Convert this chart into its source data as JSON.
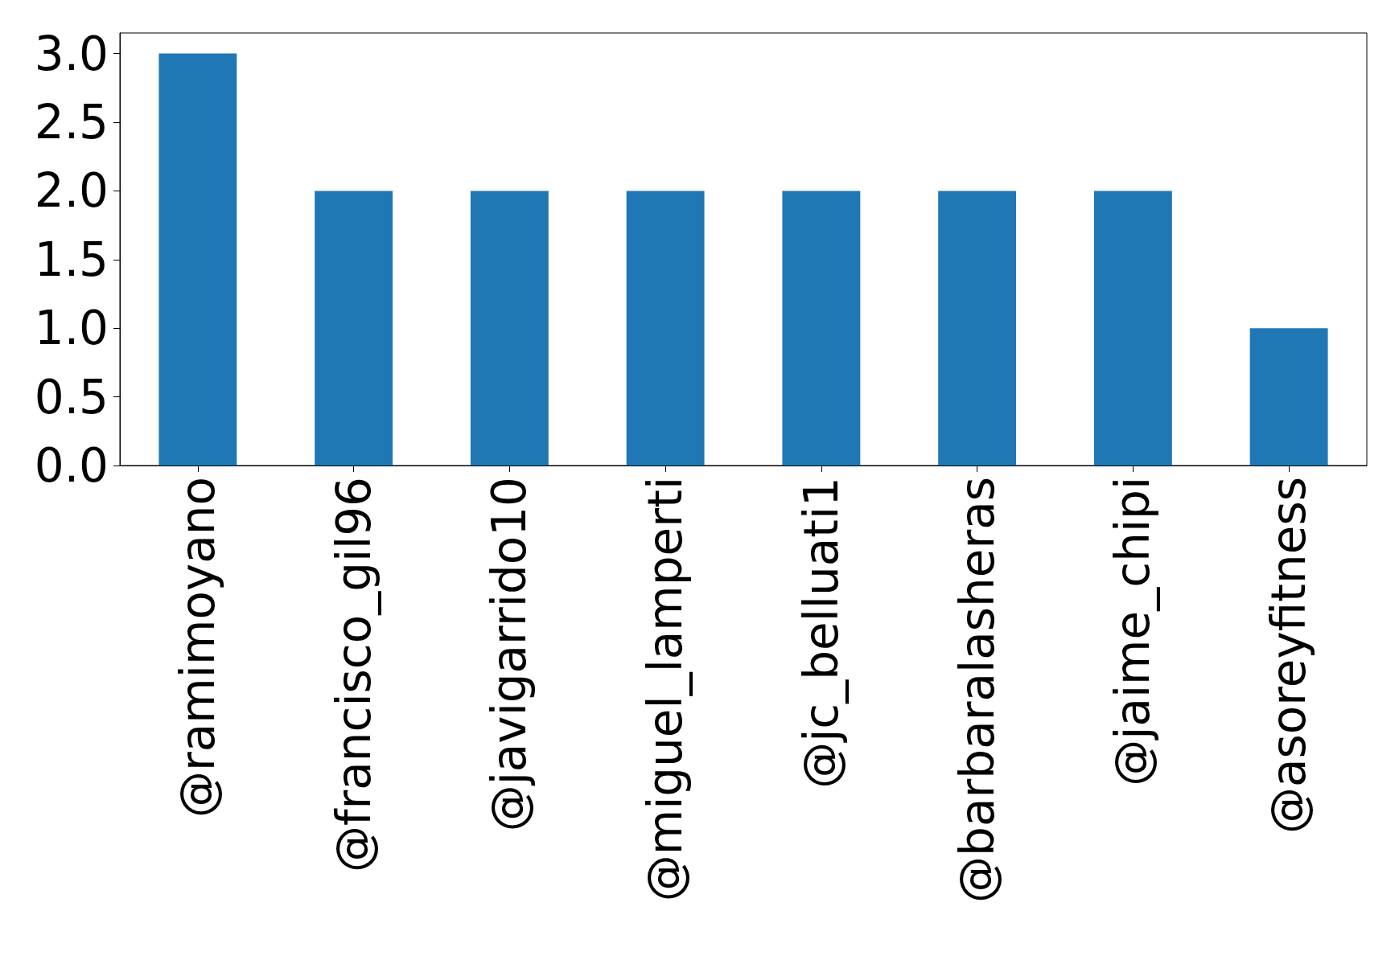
{
  "chart_data": {
    "type": "bar",
    "categories": [
      "@ramimoyano",
      "@francisco_gil96",
      "@javigarrido10",
      "@miguel_lamperti",
      "@jc_belluati1",
      "@barbaralasheras",
      "@jaime_chipi",
      "@asoreyfitness"
    ],
    "values": [
      3,
      2,
      2,
      2,
      2,
      2,
      2,
      1
    ],
    "color": "#1f77b4",
    "ylim": [
      0,
      3.15
    ],
    "yticks": [
      {
        "value": 0,
        "label": "0.0"
      },
      {
        "value": 0.5,
        "label": "0.5"
      },
      {
        "value": 1,
        "label": "1.0"
      },
      {
        "value": 1.5,
        "label": "1.5"
      },
      {
        "value": 2,
        "label": "2.0"
      },
      {
        "value": 2.5,
        "label": "2.5"
      },
      {
        "value": 3,
        "label": "3.0"
      }
    ],
    "grid": false
  }
}
